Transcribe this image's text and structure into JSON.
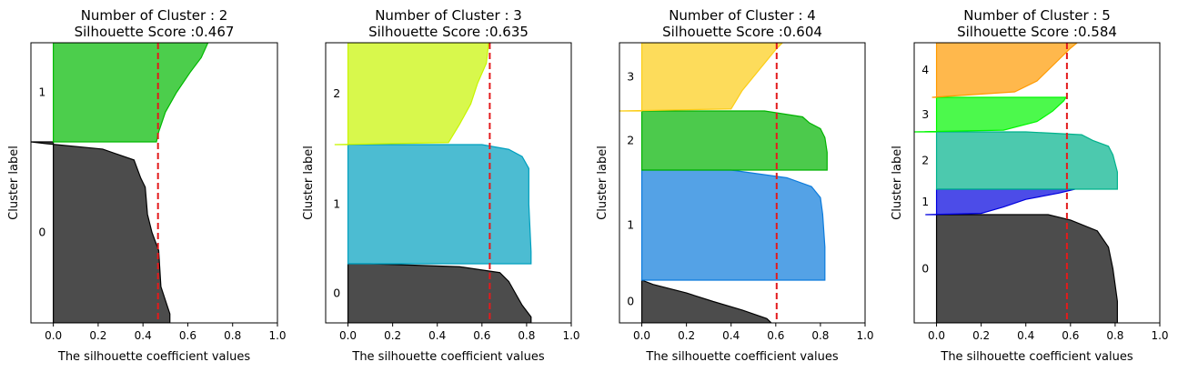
{
  "chart_data": [
    {
      "type": "area",
      "title": "Number of Cluster : 2",
      "subtitle": "Silhouette Score :0.467",
      "xlabel": "The silhouette coefficient values",
      "ylabel": "Cluster label",
      "xlim": [
        -0.1,
        1.0
      ],
      "xticks": [
        "0.0",
        "0.2",
        "0.4",
        "0.6",
        "0.8",
        "1.0"
      ],
      "avg_score": 0.467,
      "avg_line_color": "#e41a1c",
      "clusters": [
        {
          "label": "0",
          "color": "#000000",
          "profile": [
            [
              0,
              0.52
            ],
            [
              0.05,
              0.52
            ],
            [
              0.2,
              0.48
            ],
            [
              0.4,
              0.47
            ],
            [
              0.5,
              0.44
            ],
            [
              0.6,
              0.42
            ],
            [
              0.75,
              0.41
            ],
            [
              0.8,
              0.39
            ],
            [
              0.9,
              0.36
            ],
            [
              0.96,
              0.22
            ],
            [
              0.99,
              -0.03
            ],
            [
              1,
              -0.1
            ]
          ]
        },
        {
          "label": "1",
          "color": "#00b900",
          "profile": [
            [
              0,
              0.46
            ],
            [
              0.1,
              0.47
            ],
            [
              0.3,
              0.5
            ],
            [
              0.5,
              0.55
            ],
            [
              0.7,
              0.61
            ],
            [
              0.85,
              0.66
            ],
            [
              1,
              0.69
            ]
          ]
        }
      ]
    },
    {
      "type": "area",
      "title": "Number of Cluster : 3",
      "subtitle": "Silhouette Score :0.635",
      "xlabel": "The silhouette coefficient values",
      "ylabel": "Cluster label",
      "xlim": [
        -0.1,
        1.0
      ],
      "xticks": [
        "0.0",
        "0.2",
        "0.4",
        "0.6",
        "0.8",
        "1.0"
      ],
      "avg_score": 0.635,
      "avg_line_color": "#e41a1c",
      "clusters": [
        {
          "label": "0",
          "color": "#000000",
          "profile": [
            [
              0,
              0.82
            ],
            [
              0.1,
              0.82
            ],
            [
              0.3,
              0.78
            ],
            [
              0.5,
              0.75
            ],
            [
              0.7,
              0.72
            ],
            [
              0.85,
              0.68
            ],
            [
              0.95,
              0.5
            ],
            [
              1,
              0.1
            ]
          ]
        },
        {
          "label": "1",
          "color": "#00a0bf",
          "profile": [
            [
              0,
              0.82
            ],
            [
              0.1,
              0.82
            ],
            [
              0.5,
              0.81
            ],
            [
              0.8,
              0.81
            ],
            [
              0.9,
              0.78
            ],
            [
              0.96,
              0.72
            ],
            [
              1,
              0.6
            ]
          ]
        },
        {
          "label": "2",
          "color": "#c8f500",
          "profile": [
            [
              0,
              -0.06
            ],
            [
              0.02,
              0.45
            ],
            [
              0.2,
              0.5
            ],
            [
              0.4,
              0.55
            ],
            [
              0.6,
              0.58
            ],
            [
              0.8,
              0.62
            ],
            [
              1,
              0.63
            ]
          ]
        }
      ]
    },
    {
      "type": "area",
      "title": "Number of Cluster : 4",
      "subtitle": "Silhouette Score :0.604",
      "xlabel": "The silhouette coefficient values",
      "ylabel": "Cluster label",
      "xlim": [
        -0.1,
        1.0
      ],
      "xticks": [
        "0.0",
        "0.2",
        "0.4",
        "0.6",
        "0.8",
        "1.0"
      ],
      "avg_score": 0.604,
      "avg_line_color": "#e41a1c",
      "clusters": [
        {
          "label": "0",
          "color": "#000000",
          "profile": [
            [
              0,
              0.58
            ],
            [
              0.1,
              0.56
            ],
            [
              0.3,
              0.45
            ],
            [
              0.5,
              0.32
            ],
            [
              0.7,
              0.2
            ],
            [
              0.9,
              0.05
            ],
            [
              1,
              0.0
            ]
          ]
        },
        {
          "label": "1",
          "color": "#0c7bdc",
          "profile": [
            [
              0,
              0.82
            ],
            [
              0.3,
              0.82
            ],
            [
              0.6,
              0.81
            ],
            [
              0.75,
              0.8
            ],
            [
              0.85,
              0.76
            ],
            [
              0.93,
              0.65
            ],
            [
              1,
              0.4
            ]
          ]
        },
        {
          "label": "2",
          "color": "#00b300",
          "profile": [
            [
              0,
              0.83
            ],
            [
              0.3,
              0.83
            ],
            [
              0.55,
              0.82
            ],
            [
              0.7,
              0.8
            ],
            [
              0.8,
              0.75
            ],
            [
              0.9,
              0.72
            ],
            [
              1,
              0.55
            ]
          ]
        },
        {
          "label": "3",
          "color": "#fccd15",
          "profile": [
            [
              0,
              -0.1
            ],
            [
              0.03,
              0.4
            ],
            [
              0.3,
              0.45
            ],
            [
              0.5,
              0.5
            ],
            [
              0.7,
              0.55
            ],
            [
              0.9,
              0.6
            ],
            [
              1,
              0.63
            ]
          ]
        }
      ]
    },
    {
      "type": "area",
      "title": "Number of Cluster : 5",
      "subtitle": "Silhouette Score :0.584",
      "xlabel": "The silhouette coefficient values",
      "ylabel": "Cluster label",
      "xlim": [
        -0.1,
        1.0
      ],
      "xticks": [
        "0.0",
        "0.2",
        "0.4",
        "0.6",
        "0.8",
        "1.0"
      ],
      "avg_score": 0.584,
      "avg_line_color": "#e41a1c",
      "clusters": [
        {
          "label": "0",
          "color": "#000000",
          "profile": [
            [
              0,
              0.81
            ],
            [
              0.2,
              0.81
            ],
            [
              0.5,
              0.79
            ],
            [
              0.7,
              0.77
            ],
            [
              0.85,
              0.72
            ],
            [
              0.95,
              0.6
            ],
            [
              1,
              0.5
            ]
          ]
        },
        {
          "label": "1",
          "color": "#0000de",
          "profile": [
            [
              0,
              -0.05
            ],
            [
              0.05,
              0.2
            ],
            [
              0.3,
              0.3
            ],
            [
              0.6,
              0.4
            ],
            [
              0.85,
              0.55
            ],
            [
              1,
              0.62
            ]
          ]
        },
        {
          "label": "2",
          "color": "#00b28c",
          "profile": [
            [
              0,
              0.81
            ],
            [
              0.3,
              0.81
            ],
            [
              0.6,
              0.79
            ],
            [
              0.75,
              0.77
            ],
            [
              0.85,
              0.7
            ],
            [
              0.95,
              0.65
            ],
            [
              1,
              0.4
            ]
          ]
        },
        {
          "label": "3",
          "color": "#00f700",
          "profile": [
            [
              0,
              -0.1
            ],
            [
              0.05,
              0.3
            ],
            [
              0.3,
              0.45
            ],
            [
              0.6,
              0.52
            ],
            [
              0.9,
              0.57
            ],
            [
              1,
              0.58
            ]
          ]
        },
        {
          "label": "4",
          "color": "#ff9a00",
          "profile": [
            [
              0,
              -0.02
            ],
            [
              0.1,
              0.35
            ],
            [
              0.3,
              0.45
            ],
            [
              0.5,
              0.5
            ],
            [
              0.7,
              0.55
            ],
            [
              0.9,
              0.6
            ],
            [
              1,
              0.63
            ]
          ]
        }
      ]
    }
  ]
}
